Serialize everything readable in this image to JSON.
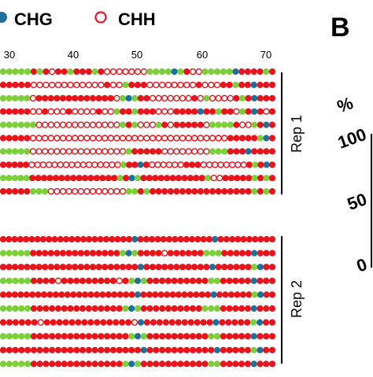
{
  "legend": {
    "chg_label": "CHG",
    "chh_label": "CHH",
    "chg_color": "#1f6f9c",
    "chh_color": "#e8141c"
  },
  "colors": {
    "methylated": "#e8141c",
    "unmethylated_chh_fill": "#ffffff",
    "unmethylated_chh_stroke": "#e8141c",
    "cg_green": "#7ccf3b",
    "chg_blue": "#1f6f9c",
    "bracket": "#000000"
  },
  "position_axis": {
    "tick_labels": [
      "30",
      "40",
      "50",
      "60",
      "70"
    ],
    "tick_values": [
      30,
      40,
      50,
      60,
      70
    ]
  },
  "panel_b_label": "B",
  "panel_b_axis": {
    "unit": "%",
    "tick_labels": [
      "100",
      "50",
      "0"
    ],
    "tick_values": [
      100,
      50,
      0
    ]
  },
  "replicates": [
    {
      "label": "Rep 1",
      "rows": [
        "gggggrgrorrgrrrgroooooooggggbgroogggggbrrrrgr",
        "rrrrrooooooooooooroogrrroooooooorooorrgrrbrrr",
        "gggggorrrrrrrrrrrrrogbgrrooooooorogoooorgrbrrr",
        "rrrrroorooorooooroogrrgrrrooorrrrbrrgrrogrbror",
        "ggggggoooooooooooooogrgooogrorrrrroggggroogrbr",
        "rrrrrooooooooooooooooooooooooooooooooorrrrrgbr",
        "gggggoooooooooooooooogrrrrroooooooogggrrrbrrrr",
        "rrrrroooooooooooooooogrrbroooooorrroooooooorgrbr",
        "gggggrrrrrrrrrrrrrrrgrbgrrrrrrrrrrrgoorrrrrgrgr",
        "rrrrrgggoooooooooooooggrgrrrrrrrrrrrrrrrrrgrgr"
      ]
    },
    {
      "label": "Rep 2",
      "rows": [
        "rrrrrrrrrrrrrrrrrrrrrrrbrrrrrrrrrrrrrbrrrrrrrrrr",
        "gggggrrrrrrrrrrrrrrrgbgrrrrorrrrrrgggrrrrrbrrr",
        "rrrrrrrrrrrrrrrrrrrrrrrbrrrrrrrrrrrbrrrrrrgbrr",
        "gggggrrrrorrrrrrrrrorgbgrrrrrrrrrrggrrrrrbrrr",
        "rrrrrrrrrrrrrrrrrrrrrrrbrrrrrrrrrrrrbrrrrrrgbrr",
        "gggggrrrrrrrrrrrrrrrgbgrrrrrrrrrrgggrrrrrbrrr",
        "rrrrrrorrrrrrrrrrrrrrobrrrrrrrrrrrbrrrrrgbrr",
        "gggggrrrrrrrrrrrrrrrrgbgrrrrrrrrrrggrrrrrbrrr",
        "rrrrrrrrrrrrrrrrrrrrrrrbrrrrrrrrrrrbrrrrrgbrr",
        "gggggrrrrrrrrrrrrrrrgbgrrrrrrrrrrrggrrrrrbrrr"
      ]
    }
  ]
}
